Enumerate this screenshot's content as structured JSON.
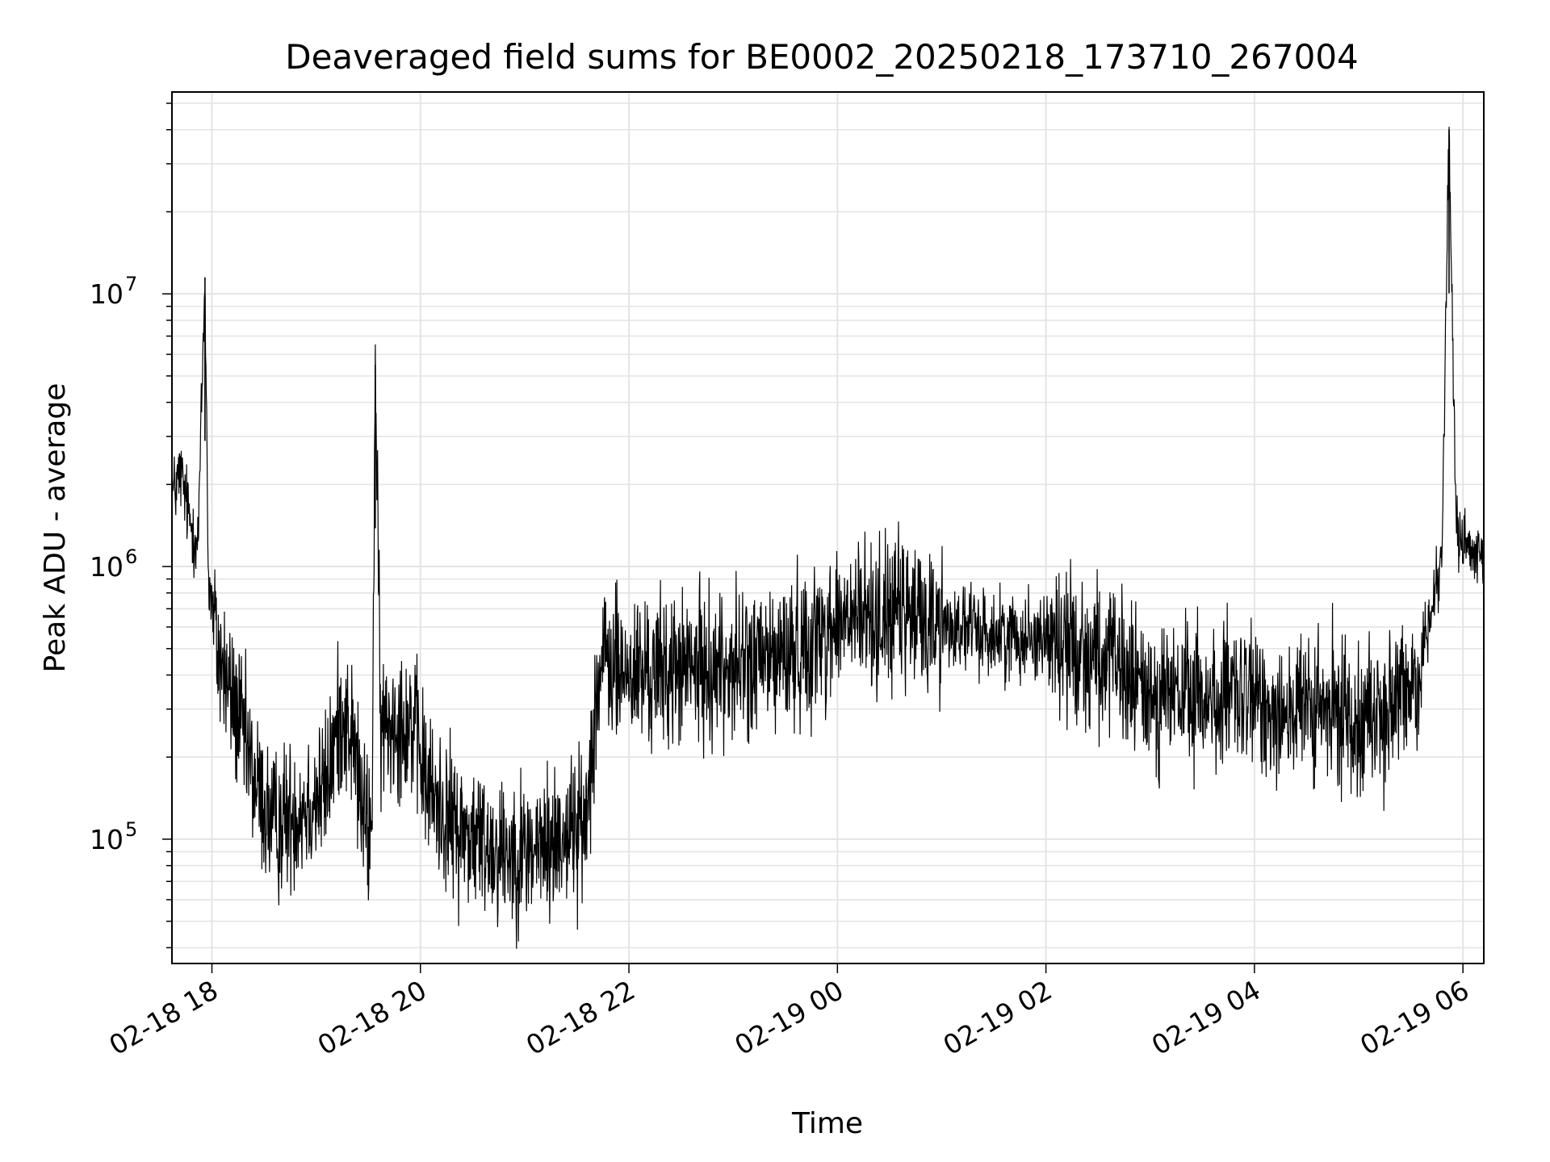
{
  "chart_data": {
    "type": "line",
    "title": "Deaveraged field sums for BE0002_20250218_173710_267004",
    "xlabel": "Time",
    "ylabel": "Peak ADU - average",
    "y_scale": "log",
    "ylim": [
      35000,
      55000000
    ],
    "xlim": [
      "2025-02-18 17:37",
      "2025-02-19 06:12"
    ],
    "x_ticks": [
      "02-18 18",
      "02-18 20",
      "02-18 22",
      "02-19 00",
      "02-19 02",
      "02-19 04",
      "02-19 06"
    ],
    "x_tick_times": [
      "2025-02-18 18:00",
      "2025-02-18 20:00",
      "2025-02-18 22:00",
      "2025-02-19 00:00",
      "2025-02-19 02:00",
      "2025-02-19 04:00",
      "2025-02-19 06:00"
    ],
    "y_major_ticks": [
      {
        "value": 100000,
        "base": "10",
        "exp": "5"
      },
      {
        "value": 1000000,
        "base": "10",
        "exp": "6"
      },
      {
        "value": 10000000,
        "base": "10",
        "exp": "7"
      }
    ],
    "grid": true,
    "line_color": "#000000",
    "series": [
      {
        "points": [
          [
            "2025-02-18 17:37",
            1800000
          ],
          [
            "2025-02-18 17:42",
            2200000
          ],
          [
            "2025-02-18 17:47",
            1500000
          ],
          [
            "2025-02-18 17:52",
            1200000
          ],
          [
            "2025-02-18 17:56",
            11500000
          ],
          [
            "2025-02-18 17:58",
            900000
          ],
          [
            "2025-02-18 18:03",
            500000
          ],
          [
            "2025-02-18 18:10",
            350000
          ],
          [
            "2025-02-18 18:15",
            280000
          ],
          [
            "2025-02-18 18:25",
            160000
          ],
          [
            "2025-02-18 18:35",
            110000
          ],
          [
            "2025-02-18 18:50",
            130000
          ],
          [
            "2025-02-18 19:05",
            150000
          ],
          [
            "2025-02-18 19:15",
            300000
          ],
          [
            "2025-02-18 19:22",
            220000
          ],
          [
            "2025-02-18 19:27",
            120000
          ],
          [
            "2025-02-18 19:32",
            100000
          ],
          [
            "2025-02-18 19:34",
            5500000
          ],
          [
            "2025-02-18 19:37",
            250000
          ],
          [
            "2025-02-18 19:45",
            280000
          ],
          [
            "2025-02-18 19:55",
            270000
          ],
          [
            "2025-02-18 20:05",
            150000
          ],
          [
            "2025-02-18 20:20",
            110000
          ],
          [
            "2025-02-18 20:40",
            95000
          ],
          [
            "2025-02-18 21:00",
            90000
          ],
          [
            "2025-02-18 21:15",
            95000
          ],
          [
            "2025-02-18 21:25",
            110000
          ],
          [
            "2025-02-18 21:35",
            110000
          ],
          [
            "2025-02-18 21:40",
            300000
          ],
          [
            "2025-02-18 21:45",
            450000
          ],
          [
            "2025-02-18 22:00",
            400000
          ],
          [
            "2025-02-18 22:30",
            420000
          ],
          [
            "2025-02-18 23:00",
            430000
          ],
          [
            "2025-02-18 23:30",
            470000
          ],
          [
            "2025-02-19 00:00",
            620000
          ],
          [
            "2025-02-19 00:30",
            680000
          ],
          [
            "2025-02-19 01:00",
            620000
          ],
          [
            "2025-02-19 01:30",
            560000
          ],
          [
            "2025-02-19 02:00",
            560000
          ],
          [
            "2025-02-19 02:30",
            470000
          ],
          [
            "2025-02-19 03:00",
            340000
          ],
          [
            "2025-02-19 03:30",
            330000
          ],
          [
            "2025-02-19 04:00",
            320000
          ],
          [
            "2025-02-19 04:30",
            290000
          ],
          [
            "2025-02-19 05:00",
            290000
          ],
          [
            "2025-02-19 05:20",
            290000
          ],
          [
            "2025-02-19 05:35",
            420000
          ],
          [
            "2025-02-19 05:42",
            700000
          ],
          [
            "2025-02-19 05:48",
            1200000
          ],
          [
            "2025-02-19 05:52",
            40000000
          ],
          [
            "2025-02-19 05:56",
            1400000
          ],
          [
            "2025-02-19 06:02",
            1150000
          ],
          [
            "2025-02-19 06:08",
            1050000
          ],
          [
            "2025-02-19 06:12",
            1000000
          ]
        ]
      }
    ]
  }
}
